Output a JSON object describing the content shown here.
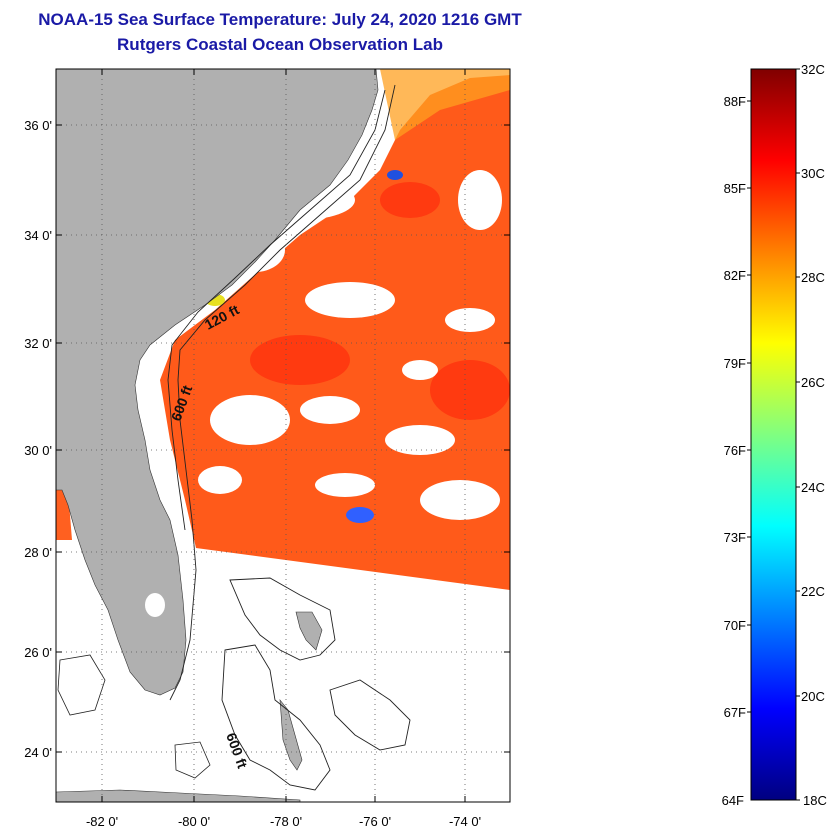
{
  "title": {
    "line1": "NOAA-15 Sea Surface Temperature:  July 24, 2020 1216 GMT",
    "line2": "Rutgers Coastal Ocean Observation Lab"
  },
  "map": {
    "lat_labels": [
      "36 0'",
      "34 0'",
      "32 0'",
      "30 0'",
      "28 0'",
      "26 0'",
      "24 0'"
    ],
    "lon_labels": [
      "-82 0'",
      "-80 0'",
      "-78 0'",
      "-76 0'",
      "-74 0'"
    ],
    "isobath_labels": [
      "120 ft",
      "600 ft",
      "600 ft"
    ],
    "land_color": "#b0b0b0",
    "sst_color": "#ff5a1a"
  },
  "colorbar": {
    "celsius_labels": [
      "32C",
      "30C",
      "28C",
      "26C",
      "24C",
      "22C",
      "20C",
      "18C"
    ],
    "fahrenheit_labels": [
      "88F",
      "85F",
      "82F",
      "79F",
      "76F",
      "73F",
      "70F",
      "67F",
      "64F"
    ],
    "colors": [
      "#000080",
      "#0000ff",
      "#0080ff",
      "#00ffff",
      "#80ff80",
      "#ffff00",
      "#ff8000",
      "#ff0000",
      "#800000"
    ]
  }
}
